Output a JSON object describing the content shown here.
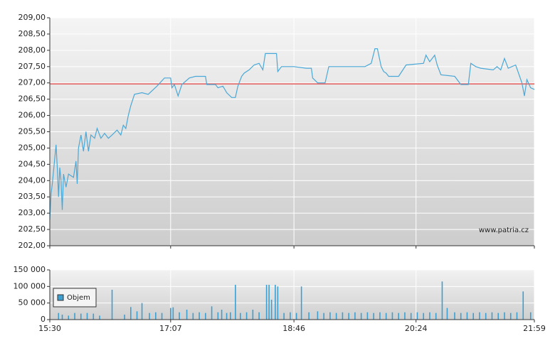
{
  "chart_data": [
    {
      "type": "line",
      "color": "#4aa8d8",
      "watermark": "www.patria.cz",
      "reference_line": {
        "value": 206.97,
        "color": "#e03c3c"
      },
      "xlim": [
        "15:30",
        "21:59"
      ],
      "ylim": [
        202,
        209
      ],
      "yticks": [
        {
          "value": 202,
          "label": "202,00"
        },
        {
          "value": 202.5,
          "label": "202,50"
        },
        {
          "value": 203,
          "label": "203,00"
        },
        {
          "value": 203.5,
          "label": "203,50"
        },
        {
          "value": 204,
          "label": "204,00"
        },
        {
          "value": 204.5,
          "label": "204,50"
        },
        {
          "value": 205,
          "label": "205,00"
        },
        {
          "value": 205.5,
          "label": "205,50"
        },
        {
          "value": 206,
          "label": "206,00"
        },
        {
          "value": 206.5,
          "label": "206,50"
        },
        {
          "value": 207,
          "label": "207,00"
        },
        {
          "value": 207.5,
          "label": "207,50"
        },
        {
          "value": 208,
          "label": "208,00"
        },
        {
          "value": 208.5,
          "label": "208,50"
        },
        {
          "value": 209,
          "label": "209,00"
        }
      ],
      "grid": true,
      "x": [
        "15:30",
        "15:31",
        "15:32",
        "15:35",
        "15:36",
        "15:37",
        "15:38",
        "15:39",
        "15:40",
        "15:41",
        "15:43",
        "15:45",
        "15:49",
        "15:51",
        "15:52",
        "15:53",
        "15:55",
        "15:57",
        "15:59",
        "16:01",
        "16:03",
        "16:06",
        "16:08",
        "16:11",
        "16:14",
        "16:17",
        "16:20",
        "16:24",
        "16:27",
        "16:29",
        "16:31",
        "16:33",
        "16:35",
        "16:38",
        "16:44",
        "16:49",
        "16:56",
        "17:02",
        "17:07",
        "17:08",
        "17:10",
        "17:13",
        "17:16",
        "17:22",
        "17:27",
        "17:35",
        "17:36",
        "17:43",
        "17:45",
        "17:49",
        "17:52",
        "17:56",
        "17:59",
        "18:01",
        "18:04",
        "18:06",
        "18:10",
        "18:14",
        "18:18",
        "18:21",
        "18:23",
        "18:32",
        "18:33",
        "18:36",
        "18:46",
        "18:56",
        "19:00",
        "19:01",
        "19:05",
        "19:11",
        "19:14",
        "19:28",
        "19:43",
        "19:48",
        "19:51",
        "19:53",
        "19:56",
        "19:58",
        "20:00",
        "20:02",
        "20:10",
        "20:16",
        "20:30",
        "20:32",
        "20:35",
        "20:39",
        "20:41",
        "20:44",
        "20:55",
        "21:00",
        "21:06",
        "21:08",
        "21:12",
        "21:16",
        "21:26",
        "21:29",
        "21:32",
        "21:35",
        "21:38",
        "21:44",
        "21:49",
        "21:51",
        "21:53",
        "21:56",
        "21:59"
      ],
      "values": [
        202.8,
        203.6,
        203.9,
        205.1,
        204.4,
        203.5,
        204.4,
        204.0,
        203.1,
        204.2,
        203.8,
        204.2,
        204.1,
        204.6,
        203.9,
        205.0,
        205.4,
        204.9,
        205.5,
        204.9,
        205.4,
        205.3,
        205.6,
        205.3,
        205.45,
        205.3,
        205.4,
        205.55,
        205.4,
        205.7,
        205.6,
        206.0,
        206.3,
        206.65,
        206.7,
        206.65,
        206.9,
        207.15,
        207.15,
        206.85,
        206.95,
        206.6,
        206.95,
        207.15,
        207.2,
        207.2,
        206.95,
        206.95,
        206.85,
        206.9,
        206.7,
        206.55,
        206.55,
        206.9,
        207.2,
        207.3,
        207.4,
        207.55,
        207.6,
        207.4,
        207.9,
        207.9,
        207.35,
        207.5,
        207.5,
        207.45,
        207.45,
        207.15,
        207.0,
        207.0,
        207.5,
        207.5,
        207.5,
        207.6,
        208.05,
        208.05,
        207.5,
        207.35,
        207.3,
        207.2,
        207.2,
        207.55,
        207.6,
        207.85,
        207.65,
        207.85,
        207.55,
        207.25,
        207.2,
        206.95,
        206.95,
        207.6,
        207.5,
        207.45,
        207.4,
        207.5,
        207.4,
        207.75,
        207.45,
        207.55,
        207.0,
        206.6,
        207.1,
        206.85,
        206.8
      ]
    },
    {
      "type": "bar",
      "xlim": [
        "15:30",
        "21:59"
      ],
      "xticks": [
        "15:30",
        "17:07",
        "18:46",
        "20:24",
        "21:59"
      ],
      "ylim": [
        0,
        150000
      ],
      "yticks": [
        0,
        {
          "value": 50000,
          "label": "50 000"
        },
        {
          "value": 100000,
          "label": "100 000"
        },
        {
          "value": 150000,
          "label": "150 000"
        }
      ],
      "grid": true,
      "legend": "top-left",
      "x": [
        "15:37",
        "15:40",
        "15:45",
        "15:50",
        "15:55",
        "16:00",
        "16:05",
        "16:10",
        "16:20",
        "16:30",
        "16:35",
        "16:40",
        "16:44",
        "16:50",
        "16:55",
        "17:00",
        "17:07",
        "17:09",
        "17:14",
        "17:20",
        "17:25",
        "17:30",
        "17:35",
        "17:40",
        "17:45",
        "17:48",
        "17:52",
        "17:55",
        "17:59",
        "18:03",
        "18:08",
        "18:13",
        "18:18",
        "18:24",
        "18:26",
        "18:28",
        "18:31",
        "18:33",
        "18:38",
        "18:43",
        "18:48",
        "18:52",
        "18:58",
        "19:05",
        "19:10",
        "19:15",
        "19:20",
        "19:25",
        "19:30",
        "19:35",
        "19:40",
        "19:45",
        "19:50",
        "19:55",
        "20:00",
        "20:05",
        "20:10",
        "20:15",
        "20:20",
        "20:25",
        "20:30",
        "20:35",
        "20:40",
        "20:45",
        "20:49",
        "20:55",
        "21:00",
        "21:05",
        "21:10",
        "21:15",
        "21:20",
        "21:25",
        "21:30",
        "21:35",
        "21:40",
        "21:45",
        "21:50",
        "21:56"
      ],
      "series": [
        {
          "name": "Objem",
          "color": "#3d9fd0",
          "values": [
            20000,
            15000,
            12000,
            20000,
            18000,
            20000,
            18000,
            12000,
            90000,
            15000,
            38000,
            25000,
            50000,
            20000,
            22000,
            20000,
            35000,
            37000,
            22000,
            30000,
            20000,
            22000,
            20000,
            40000,
            22000,
            30000,
            20000,
            22000,
            105000,
            20000,
            22000,
            30000,
            22000,
            105000,
            105000,
            60000,
            105000,
            100000,
            20000,
            22000,
            20000,
            100000,
            22000,
            25000,
            20000,
            22000,
            20000,
            22000,
            20000,
            22000,
            20000,
            22000,
            20000,
            22000,
            20000,
            22000,
            20000,
            22000,
            20000,
            22000,
            20000,
            22000,
            20000,
            115000,
            35000,
            22000,
            20000,
            22000,
            20000,
            22000,
            20000,
            22000,
            20000,
            22000,
            20000,
            22000,
            85000,
            22000
          ]
        }
      ]
    }
  ]
}
